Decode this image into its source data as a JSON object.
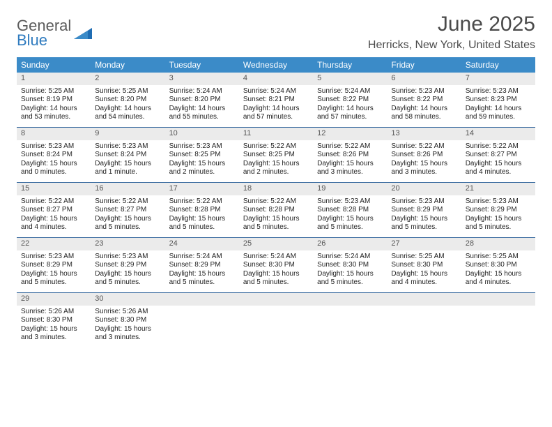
{
  "brand": {
    "word1": "General",
    "word2": "Blue"
  },
  "title": "June 2025",
  "location": "Herricks, New York, United States",
  "colors": {
    "header_bg": "#3b8bc8",
    "header_text": "#ffffff",
    "daynum_bg": "#ebebeb",
    "daynum_text": "#555555",
    "body_text": "#222222",
    "week_border": "#3b6ca0",
    "title_text": "#4a4a4a",
    "logo_gray": "#5a5a5a",
    "logo_blue": "#2f7bbf"
  },
  "weekdays": [
    "Sunday",
    "Monday",
    "Tuesday",
    "Wednesday",
    "Thursday",
    "Friday",
    "Saturday"
  ],
  "weeks": [
    [
      {
        "n": "1",
        "sr": "Sunrise: 5:25 AM",
        "ss": "Sunset: 8:19 PM",
        "dl": "Daylight: 14 hours and 53 minutes."
      },
      {
        "n": "2",
        "sr": "Sunrise: 5:25 AM",
        "ss": "Sunset: 8:20 PM",
        "dl": "Daylight: 14 hours and 54 minutes."
      },
      {
        "n": "3",
        "sr": "Sunrise: 5:24 AM",
        "ss": "Sunset: 8:20 PM",
        "dl": "Daylight: 14 hours and 55 minutes."
      },
      {
        "n": "4",
        "sr": "Sunrise: 5:24 AM",
        "ss": "Sunset: 8:21 PM",
        "dl": "Daylight: 14 hours and 57 minutes."
      },
      {
        "n": "5",
        "sr": "Sunrise: 5:24 AM",
        "ss": "Sunset: 8:22 PM",
        "dl": "Daylight: 14 hours and 57 minutes."
      },
      {
        "n": "6",
        "sr": "Sunrise: 5:23 AM",
        "ss": "Sunset: 8:22 PM",
        "dl": "Daylight: 14 hours and 58 minutes."
      },
      {
        "n": "7",
        "sr": "Sunrise: 5:23 AM",
        "ss": "Sunset: 8:23 PM",
        "dl": "Daylight: 14 hours and 59 minutes."
      }
    ],
    [
      {
        "n": "8",
        "sr": "Sunrise: 5:23 AM",
        "ss": "Sunset: 8:24 PM",
        "dl": "Daylight: 15 hours and 0 minutes."
      },
      {
        "n": "9",
        "sr": "Sunrise: 5:23 AM",
        "ss": "Sunset: 8:24 PM",
        "dl": "Daylight: 15 hours and 1 minute."
      },
      {
        "n": "10",
        "sr": "Sunrise: 5:23 AM",
        "ss": "Sunset: 8:25 PM",
        "dl": "Daylight: 15 hours and 2 minutes."
      },
      {
        "n": "11",
        "sr": "Sunrise: 5:22 AM",
        "ss": "Sunset: 8:25 PM",
        "dl": "Daylight: 15 hours and 2 minutes."
      },
      {
        "n": "12",
        "sr": "Sunrise: 5:22 AM",
        "ss": "Sunset: 8:26 PM",
        "dl": "Daylight: 15 hours and 3 minutes."
      },
      {
        "n": "13",
        "sr": "Sunrise: 5:22 AM",
        "ss": "Sunset: 8:26 PM",
        "dl": "Daylight: 15 hours and 3 minutes."
      },
      {
        "n": "14",
        "sr": "Sunrise: 5:22 AM",
        "ss": "Sunset: 8:27 PM",
        "dl": "Daylight: 15 hours and 4 minutes."
      }
    ],
    [
      {
        "n": "15",
        "sr": "Sunrise: 5:22 AM",
        "ss": "Sunset: 8:27 PM",
        "dl": "Daylight: 15 hours and 4 minutes."
      },
      {
        "n": "16",
        "sr": "Sunrise: 5:22 AM",
        "ss": "Sunset: 8:27 PM",
        "dl": "Daylight: 15 hours and 5 minutes."
      },
      {
        "n": "17",
        "sr": "Sunrise: 5:22 AM",
        "ss": "Sunset: 8:28 PM",
        "dl": "Daylight: 15 hours and 5 minutes."
      },
      {
        "n": "18",
        "sr": "Sunrise: 5:22 AM",
        "ss": "Sunset: 8:28 PM",
        "dl": "Daylight: 15 hours and 5 minutes."
      },
      {
        "n": "19",
        "sr": "Sunrise: 5:23 AM",
        "ss": "Sunset: 8:28 PM",
        "dl": "Daylight: 15 hours and 5 minutes."
      },
      {
        "n": "20",
        "sr": "Sunrise: 5:23 AM",
        "ss": "Sunset: 8:29 PM",
        "dl": "Daylight: 15 hours and 5 minutes."
      },
      {
        "n": "21",
        "sr": "Sunrise: 5:23 AM",
        "ss": "Sunset: 8:29 PM",
        "dl": "Daylight: 15 hours and 5 minutes."
      }
    ],
    [
      {
        "n": "22",
        "sr": "Sunrise: 5:23 AM",
        "ss": "Sunset: 8:29 PM",
        "dl": "Daylight: 15 hours and 5 minutes."
      },
      {
        "n": "23",
        "sr": "Sunrise: 5:23 AM",
        "ss": "Sunset: 8:29 PM",
        "dl": "Daylight: 15 hours and 5 minutes."
      },
      {
        "n": "24",
        "sr": "Sunrise: 5:24 AM",
        "ss": "Sunset: 8:29 PM",
        "dl": "Daylight: 15 hours and 5 minutes."
      },
      {
        "n": "25",
        "sr": "Sunrise: 5:24 AM",
        "ss": "Sunset: 8:30 PM",
        "dl": "Daylight: 15 hours and 5 minutes."
      },
      {
        "n": "26",
        "sr": "Sunrise: 5:24 AM",
        "ss": "Sunset: 8:30 PM",
        "dl": "Daylight: 15 hours and 5 minutes."
      },
      {
        "n": "27",
        "sr": "Sunrise: 5:25 AM",
        "ss": "Sunset: 8:30 PM",
        "dl": "Daylight: 15 hours and 4 minutes."
      },
      {
        "n": "28",
        "sr": "Sunrise: 5:25 AM",
        "ss": "Sunset: 8:30 PM",
        "dl": "Daylight: 15 hours and 4 minutes."
      }
    ],
    [
      {
        "n": "29",
        "sr": "Sunrise: 5:26 AM",
        "ss": "Sunset: 8:30 PM",
        "dl": "Daylight: 15 hours and 3 minutes."
      },
      {
        "n": "30",
        "sr": "Sunrise: 5:26 AM",
        "ss": "Sunset: 8:30 PM",
        "dl": "Daylight: 15 hours and 3 minutes."
      },
      null,
      null,
      null,
      null,
      null
    ]
  ]
}
